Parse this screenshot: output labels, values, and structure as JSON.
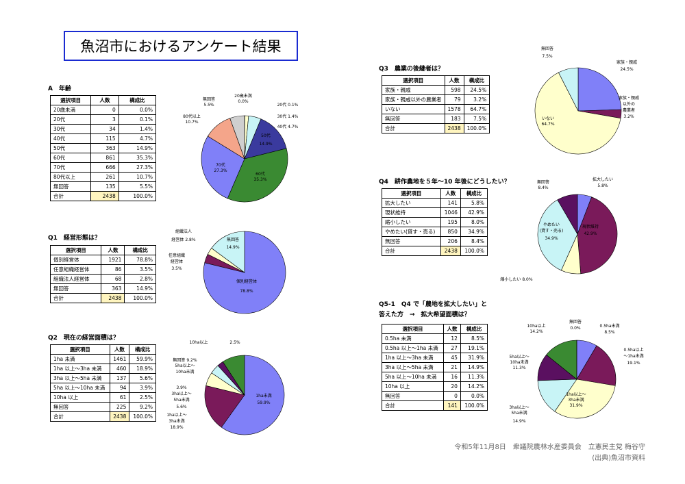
{
  "title": "魚沼市におけるアンケート結果",
  "headers": {
    "item": "選択項目",
    "count": "人数",
    "ratio": "構成比"
  },
  "colors": {
    "blue": "#8080f8",
    "green": "#3a8a32",
    "purple": "#7a1a5a",
    "yellow": "#ffffcc",
    "cyan": "#c8f4f6",
    "salmon": "#f4a58a",
    "gray": "#cfcfcf",
    "navy": "#2a2a9a",
    "dark": "#5a1060"
  },
  "sections": {
    "age": {
      "title": "A　年齢",
      "rows": [
        {
          "label": "20歳未満",
          "count": "0",
          "ratio": "0.0%"
        },
        {
          "label": "20代",
          "count": "3",
          "ratio": "0.1%"
        },
        {
          "label": "30代",
          "count": "34",
          "ratio": "1.4%"
        },
        {
          "label": "40代",
          "count": "115",
          "ratio": "4.7%"
        },
        {
          "label": "50代",
          "count": "363",
          "ratio": "14.9%"
        },
        {
          "label": "60代",
          "count": "861",
          "ratio": "35.3%"
        },
        {
          "label": "70代",
          "count": "666",
          "ratio": "27.3%"
        },
        {
          "label": "80代以上",
          "count": "261",
          "ratio": "10.7%"
        },
        {
          "label": "無回答",
          "count": "135",
          "ratio": "5.5%"
        },
        {
          "label": "合計",
          "count": "2438",
          "ratio": "100.0%",
          "total": true
        }
      ]
    },
    "q1": {
      "title": "Q1　経営形態は？",
      "rows": [
        {
          "label": "個別経営体",
          "count": "1921",
          "ratio": "78.8%"
        },
        {
          "label": "任意組織経営体",
          "count": "86",
          "ratio": "3.5%"
        },
        {
          "label": "組織法人経営体",
          "count": "68",
          "ratio": "2.8%"
        },
        {
          "label": "無回答",
          "count": "363",
          "ratio": "14.9%"
        },
        {
          "label": "合計",
          "count": "2438",
          "ratio": "100.0%",
          "total": true
        }
      ]
    },
    "q2": {
      "title": "Q2　現在の経営面積は？",
      "rows": [
        {
          "label": "1ha 未満",
          "count": "1461",
          "ratio": "59.9%"
        },
        {
          "label": "1ha 以上～3ha 未満",
          "count": "460",
          "ratio": "18.9%"
        },
        {
          "label": "3ha 以上～5ha 未満",
          "count": "137",
          "ratio": "5.6%"
        },
        {
          "label": "5ha 以上～10ha 未満",
          "count": "94",
          "ratio": "3.9%"
        },
        {
          "label": "10ha 以上",
          "count": "61",
          "ratio": "2.5%"
        },
        {
          "label": "無回答",
          "count": "225",
          "ratio": "9.2%"
        },
        {
          "label": "合計",
          "count": "2438",
          "ratio": "100.0%",
          "total": true
        }
      ]
    },
    "q3": {
      "title": "Q3　農業の後継者は？",
      "rows": [
        {
          "label": "家族・親戚",
          "count": "598",
          "ratio": "24.5%"
        },
        {
          "label": "家族・親戚以外の農業者",
          "count": "79",
          "ratio": "3.2%"
        },
        {
          "label": "いない",
          "count": "1578",
          "ratio": "64.7%"
        },
        {
          "label": "無回答",
          "count": "183",
          "ratio": "7.5%"
        },
        {
          "label": "合計",
          "count": "2438",
          "ratio": "100.0%",
          "total": true
        }
      ]
    },
    "q4": {
      "title": "Q4　耕作農地を５年～10 年後にどうしたい？",
      "rows": [
        {
          "label": "拡大したい",
          "count": "141",
          "ratio": "5.8%"
        },
        {
          "label": "現状維持",
          "count": "1046",
          "ratio": "42.9%"
        },
        {
          "label": "縮小したい",
          "count": "195",
          "ratio": "8.0%"
        },
        {
          "label": "やめたい(貸す・売る)",
          "count": "850",
          "ratio": "34.9%"
        },
        {
          "label": "無回答",
          "count": "206",
          "ratio": "8.4%"
        },
        {
          "label": "合計",
          "count": "2438",
          "ratio": "100.0%",
          "total": true
        }
      ]
    },
    "q5": {
      "title": "Q5-1　Q4 で「農地を拡大したい」と",
      "title2": "答えた方　→　拡大希望面積は？",
      "rows": [
        {
          "label": "0.5ha 未満",
          "count": "12",
          "ratio": "8.5%"
        },
        {
          "label": "0.5ha 以上～1ha 未満",
          "count": "27",
          "ratio": "19.1%"
        },
        {
          "label": "1ha 以上～3ha 未満",
          "count": "45",
          "ratio": "31.9%"
        },
        {
          "label": "3ha 以上～5ha 未満",
          "count": "21",
          "ratio": "14.9%"
        },
        {
          "label": "5ha 以上～10ha 未満",
          "count": "16",
          "ratio": "11.3%"
        },
        {
          "label": "10ha 以上",
          "count": "20",
          "ratio": "14.2%"
        },
        {
          "label": "無回答",
          "count": "0",
          "ratio": "0.0%"
        },
        {
          "label": "合計",
          "count": "141",
          "ratio": "100.0%",
          "total": true
        }
      ]
    }
  },
  "chart_data": [
    {
      "type": "pie",
      "id": "age",
      "labels": [
        "20歳未満",
        "20代",
        "30代",
        "40代",
        "50代",
        "60代",
        "70代",
        "80代以上",
        "無回答"
      ],
      "values": [
        0.0,
        0.1,
        1.4,
        4.7,
        14.9,
        35.3,
        27.3,
        10.7,
        5.5
      ],
      "colors": [
        "#ffffff",
        "#ffffff",
        "#ffffcc",
        "#c8f4f6",
        "#3a3a9e",
        "#3a8a32",
        "#8080f8",
        "#f4a58a",
        "#cfcfcf"
      ]
    },
    {
      "type": "pie",
      "id": "q1",
      "labels": [
        "個別経営体",
        "任意組織経営体",
        "組織法人経営体",
        "無回答"
      ],
      "values": [
        78.8,
        3.5,
        2.8,
        14.9
      ],
      "colors": [
        "#8080f8",
        "#7a1a5a",
        "#ffffcc",
        "#c8f4f6"
      ]
    },
    {
      "type": "pie",
      "id": "q2",
      "labels": [
        "1ha未満",
        "1ha以上～3ha未満",
        "3ha以上～5ha未満",
        "5ha以上～10ha未満",
        "10ha以上",
        "無回答"
      ],
      "values": [
        59.9,
        18.9,
        5.6,
        3.9,
        2.5,
        9.2
      ],
      "colors": [
        "#8080f8",
        "#7a1a5a",
        "#ffffcc",
        "#c8f4f6",
        "#5a1060",
        "#3a8a32"
      ]
    },
    {
      "type": "pie",
      "id": "q3",
      "labels": [
        "家族・親戚",
        "家族・親戚以外の農業者",
        "いない",
        "無回答"
      ],
      "values": [
        24.5,
        3.2,
        64.7,
        7.5
      ],
      "colors": [
        "#8080f8",
        "#7a1a5a",
        "#ffffcc",
        "#c8f4f6"
      ]
    },
    {
      "type": "pie",
      "id": "q4",
      "labels": [
        "拡大したい",
        "現状維持",
        "縮小したい",
        "やめたい(貸す・売る)",
        "無回答"
      ],
      "values": [
        5.8,
        42.9,
        8.0,
        34.9,
        8.4
      ],
      "colors": [
        "#8080f8",
        "#7a1a5a",
        "#ffffcc",
        "#c8f4f6",
        "#5a1060"
      ]
    },
    {
      "type": "pie",
      "id": "q5",
      "labels": [
        "0.5ha未満",
        "0.5ha以上～1ha未満",
        "1ha以上～3ha未満",
        "3ha以上～5ha未満",
        "5ha以上～10ha未満",
        "10ha以上",
        "無回答"
      ],
      "values": [
        8.5,
        19.1,
        31.9,
        14.9,
        11.3,
        14.2,
        0.0
      ],
      "colors": [
        "#8080f8",
        "#7a1a5a",
        "#ffffcc",
        "#c8f4f6",
        "#5a1060",
        "#3a8a32",
        "#ffffff"
      ]
    }
  ],
  "pie_labels": {
    "age": [
      "20歳未満",
      "0.0%",
      "20代 0.1%",
      "30代 1.4%",
      "40代 4.7%",
      "50代",
      "14.9%",
      "60代",
      "35.3%",
      "70代",
      "27.3%",
      "80代以上",
      "10.7%",
      "無回答",
      "5.5%"
    ],
    "q1": [
      "組織法人",
      "経営体 2.8%",
      "任意組織",
      "経営体",
      "3.5%",
      "無回答",
      "14.9%",
      "個別経営体",
      "78.8%"
    ],
    "q2": [
      "10ha以上",
      "2.5%",
      "無回答 9.2%",
      "5ha以上～",
      "10ha未満",
      "3.9%",
      "3ha以上～",
      "5ha未満",
      "5.6%",
      "1ha以上～",
      "3ha未満",
      "18.9%",
      "1ha未満",
      "59.9%"
    ],
    "q3": [
      "無回答",
      "7.5%",
      "家族・親戚",
      "24.5%",
      "家族・親戚",
      "以外の",
      "農業者",
      "3.2%",
      "いない",
      "64.7%"
    ],
    "q4": [
      "無回答",
      "8.4%",
      "拡大したい",
      "5.8%",
      "やめたい",
      "(貸す・売る)",
      "34.9%",
      "現状維持",
      "42.9%",
      "縮小したい 8.0%"
    ],
    "q5": [
      "無回答",
      "0.0%",
      "10ha以上",
      "14.2%",
      "0.5ha未満",
      "8.5%",
      "0.5ha以上",
      "～1ha未満",
      "19.1%",
      "5ha以上～",
      "10ha未満",
      "11.3%",
      "3ha以上～",
      "5ha未満",
      "14.9%",
      "1ha以上～",
      "3ha未満",
      "31.9%"
    ]
  },
  "footer": {
    "line1": "令和5年11月8日　衆議院農林水産委員会　立憲民主党 梅谷守",
    "line2": "(出典)魚沼市資料"
  }
}
